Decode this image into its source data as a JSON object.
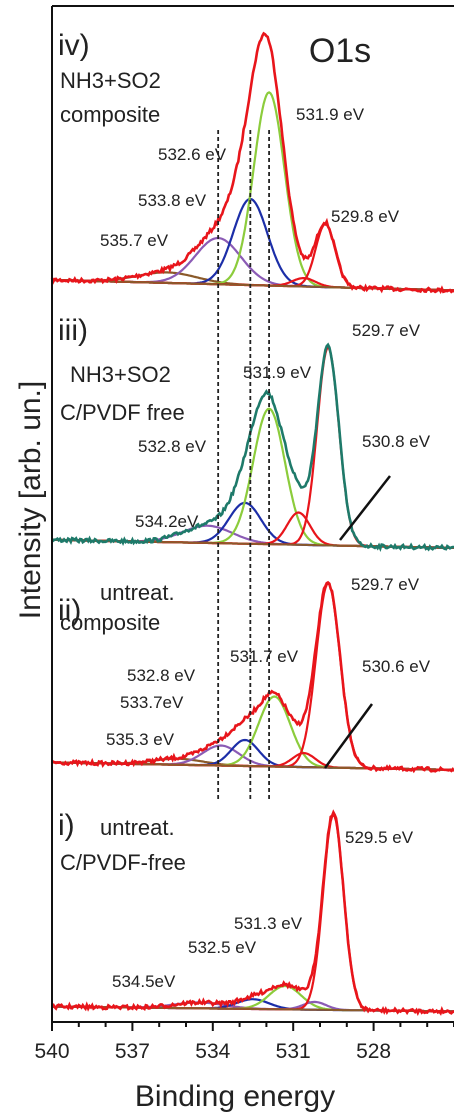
{
  "chart_data": {
    "type": "line",
    "title": "O1s",
    "xlabel": "Binding energy",
    "ylabel": "Intensity [arb. un.]",
    "x_range": [
      540,
      525
    ],
    "x_reversed": true,
    "x_ticks": [
      540,
      537,
      534,
      531,
      528
    ],
    "y_ticks_shown": false,
    "reference_lines_eV": [
      533.8,
      532.6,
      531.9
    ],
    "colors": {
      "envelope": "#e8151b",
      "envelope_iii": "#1e7a6a",
      "fit_main": "#8ccc3c",
      "fit_blue": "#1c2ea8",
      "fit_purple": "#8b5bb5",
      "fit_red": "#e8151b",
      "fit_brown": "#8a5a2a",
      "background": "#8a5a2a",
      "refline": "#222222"
    },
    "panels": [
      {
        "label_num": "iv)",
        "label_lines": [
          "NH3+SO2",
          "composite"
        ],
        "envelope_color": "#e8151b",
        "peaks": [
          {
            "center": 535.7,
            "amp": 0.05,
            "fwhm": 2.6,
            "color": "#8a5a2a",
            "label": "535.7 eV"
          },
          {
            "center": 533.8,
            "amp": 0.22,
            "fwhm": 2.0,
            "color": "#8b5bb5",
            "label": "533.8 eV"
          },
          {
            "center": 532.6,
            "amp": 0.41,
            "fwhm": 1.5,
            "color": "#1c2ea8",
            "label": "532.6 eV"
          },
          {
            "center": 531.9,
            "amp": 0.92,
            "fwhm": 1.35,
            "color": "#8ccc3c",
            "label": "531.9 eV"
          },
          {
            "center": 530.6,
            "amp": 0.04,
            "fwhm": 1.0,
            "color": "#e8151b",
            "label": ""
          },
          {
            "center": 529.8,
            "amp": 0.3,
            "fwhm": 0.85,
            "color": "#e8151b",
            "label": "529.8 eV"
          }
        ]
      },
      {
        "label_num": "iii)",
        "label_lines": [
          "NH3+SO2",
          "C/PVDF free"
        ],
        "envelope_color": "#1e7a6a",
        "peaks": [
          {
            "center": 534.2,
            "amp": 0.08,
            "fwhm": 2.2,
            "color": "#8b5bb5",
            "label": "534.2eV"
          },
          {
            "center": 532.8,
            "amp": 0.19,
            "fwhm": 1.4,
            "color": "#1c2ea8",
            "label": "532.8 eV"
          },
          {
            "center": 531.9,
            "amp": 0.63,
            "fwhm": 1.4,
            "color": "#8ccc3c",
            "label": "531.9 eV"
          },
          {
            "center": 530.8,
            "amp": 0.15,
            "fwhm": 1.0,
            "color": "#e8151b",
            "label": "530.8 eV"
          },
          {
            "center": 529.7,
            "amp": 0.92,
            "fwhm": 0.95,
            "color": "#e8151b",
            "label": "529.7 eV"
          }
        ]
      },
      {
        "label_num": "ii)",
        "label_lines": [
          "untreat.",
          "composite"
        ],
        "envelope_color": "#e8151b",
        "peaks": [
          {
            "center": 535.3,
            "amp": 0.03,
            "fwhm": 2.2,
            "color": "#8a5a2a",
            "label": "535.3 eV"
          },
          {
            "center": 533.7,
            "amp": 0.1,
            "fwhm": 1.6,
            "color": "#8b5bb5",
            "label": "533.7eV"
          },
          {
            "center": 532.8,
            "amp": 0.13,
            "fwhm": 1.2,
            "color": "#1c2ea8",
            "label": "532.8 eV"
          },
          {
            "center": 531.7,
            "amp": 0.35,
            "fwhm": 1.4,
            "color": "#8ccc3c",
            "label": "531.7 eV"
          },
          {
            "center": 530.6,
            "amp": 0.07,
            "fwhm": 1.0,
            "color": "#e8151b",
            "label": "530.6 eV"
          },
          {
            "center": 529.7,
            "amp": 0.92,
            "fwhm": 1.05,
            "color": "#e8151b",
            "label": "529.7 eV"
          }
        ]
      },
      {
        "label_num": "i)",
        "label_lines": [
          "untreat.",
          "C/PVDF-free"
        ],
        "envelope_color": "#e8151b",
        "peaks": [
          {
            "center": 534.5,
            "amp": 0.03,
            "fwhm": 2.2,
            "color": "#8b5bb5",
            "label": "534.5eV"
          },
          {
            "center": 532.5,
            "amp": 0.05,
            "fwhm": 1.4,
            "color": "#1c2ea8",
            "label": "532.5 eV"
          },
          {
            "center": 531.3,
            "amp": 0.12,
            "fwhm": 1.4,
            "color": "#8ccc3c",
            "label": "531.3 eV"
          },
          {
            "center": 530.2,
            "amp": 0.04,
            "fwhm": 1.0,
            "color": "#8b5bb5",
            "label": ""
          },
          {
            "center": 529.5,
            "amp": 1.0,
            "fwhm": 0.9,
            "color": "#e8151b",
            "label": "529.5 eV"
          }
        ]
      }
    ]
  }
}
